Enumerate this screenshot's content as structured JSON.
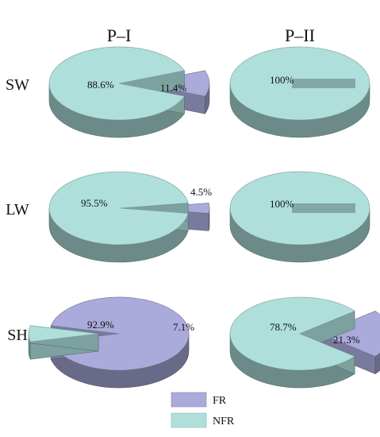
{
  "chart_data": {
    "type": "pie",
    "style": "3d-exploded",
    "series_names": [
      "FR",
      "NFR"
    ],
    "colors": {
      "FR": "#aaaadb",
      "NFR": "#aedfdb"
    },
    "columns": [
      "P–I",
      "P–II"
    ],
    "rows": [
      "SW",
      "LW",
      "SH"
    ],
    "charts": [
      {
        "row": "SW",
        "col": "P–I",
        "slices": [
          {
            "name": "FR",
            "value": 11.4,
            "label": "11.4%"
          },
          {
            "name": "NFR",
            "value": 88.6,
            "label": "88.6%"
          }
        ]
      },
      {
        "row": "SW",
        "col": "P–II",
        "slices": [
          {
            "name": "FR",
            "value": 0,
            "label": ""
          },
          {
            "name": "NFR",
            "value": 100,
            "label": "100%"
          }
        ]
      },
      {
        "row": "LW",
        "col": "P–I",
        "slices": [
          {
            "name": "FR",
            "value": 4.5,
            "label": "4.5%"
          },
          {
            "name": "NFR",
            "value": 95.5,
            "label": "95.5%"
          }
        ]
      },
      {
        "row": "LW",
        "col": "P–II",
        "slices": [
          {
            "name": "FR",
            "value": 0,
            "label": ""
          },
          {
            "name": "NFR",
            "value": 100,
            "label": "100%"
          }
        ]
      },
      {
        "row": "SH",
        "col": "P–I",
        "slices": [
          {
            "name": "FR",
            "value": 92.9,
            "label": "92.9%"
          },
          {
            "name": "NFR",
            "value": 7.1,
            "label": "7.1%"
          }
        ]
      },
      {
        "row": "SH",
        "col": "P–II",
        "slices": [
          {
            "name": "FR",
            "value": 21.3,
            "label": "21.3%"
          },
          {
            "name": "NFR",
            "value": 78.7,
            "label": "78.7%"
          }
        ]
      }
    ],
    "legend": {
      "position": "bottom",
      "entries": [
        "FR",
        "NFR"
      ]
    }
  }
}
